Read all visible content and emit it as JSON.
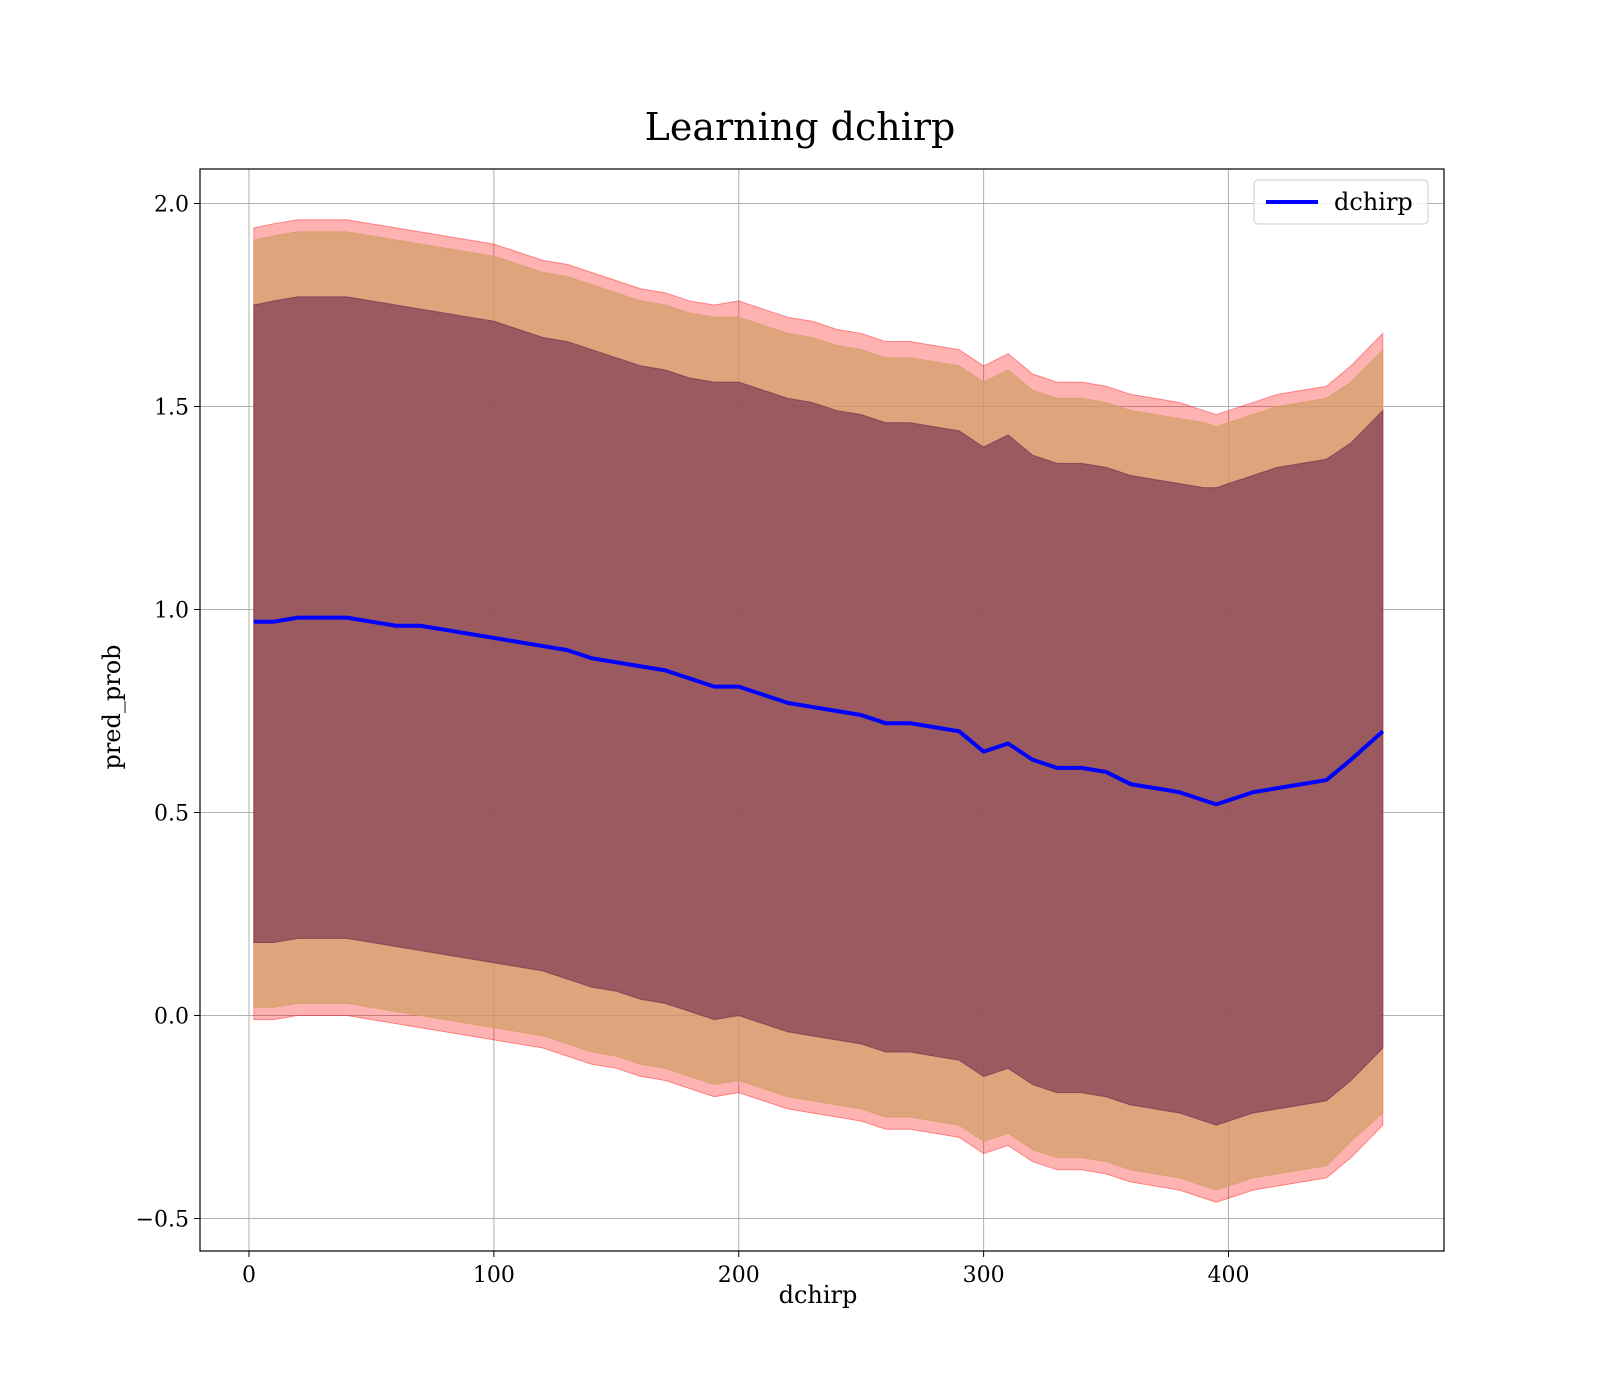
{
  "chart_data": {
    "type": "area",
    "title": "Learning dchirp",
    "xlabel": "dchirp",
    "ylabel": "pred_prob",
    "xlim": [
      -20,
      488
    ],
    "ylim": [
      -0.58,
      2.085
    ],
    "x_ticks": [
      0,
      100,
      200,
      300,
      400
    ],
    "x_tick_labels": [
      "0",
      "100",
      "200",
      "300",
      "400"
    ],
    "y_ticks": [
      -0.5,
      0.0,
      0.5,
      1.0,
      1.5,
      2.0
    ],
    "y_tick_labels": [
      "−0.5",
      "0.0",
      "0.5",
      "1.0",
      "1.5",
      "2.0"
    ],
    "grid": true,
    "legend_position": "top-right",
    "x": [
      2,
      10,
      20,
      30,
      40,
      50,
      60,
      70,
      80,
      90,
      100,
      110,
      120,
      130,
      140,
      150,
      160,
      170,
      180,
      190,
      200,
      210,
      220,
      230,
      240,
      250,
      260,
      270,
      280,
      290,
      300,
      310,
      320,
      330,
      340,
      350,
      360,
      370,
      380,
      390,
      395,
      400,
      410,
      420,
      430,
      440,
      450,
      463
    ],
    "series": [
      {
        "name": "dchirp",
        "color": "#0000ff",
        "values": [
          0.97,
          0.97,
          0.98,
          0.98,
          0.98,
          0.97,
          0.96,
          0.96,
          0.95,
          0.94,
          0.93,
          0.92,
          0.91,
          0.9,
          0.88,
          0.87,
          0.86,
          0.85,
          0.83,
          0.81,
          0.81,
          0.79,
          0.77,
          0.76,
          0.75,
          0.74,
          0.72,
          0.72,
          0.71,
          0.7,
          0.65,
          0.67,
          0.63,
          0.61,
          0.61,
          0.6,
          0.57,
          0.56,
          0.55,
          0.53,
          0.52,
          0.53,
          0.55,
          0.56,
          0.57,
          0.58,
          0.63,
          0.7
        ]
      }
    ],
    "bands": [
      {
        "color": "#ff0000",
        "opacity": 0.3,
        "upper": [
          1.94,
          1.95,
          1.96,
          1.96,
          1.96,
          1.95,
          1.94,
          1.93,
          1.92,
          1.91,
          1.9,
          1.88,
          1.86,
          1.85,
          1.83,
          1.81,
          1.79,
          1.78,
          1.76,
          1.75,
          1.76,
          1.74,
          1.72,
          1.71,
          1.69,
          1.68,
          1.66,
          1.66,
          1.65,
          1.64,
          1.6,
          1.63,
          1.58,
          1.56,
          1.56,
          1.55,
          1.53,
          1.52,
          1.51,
          1.49,
          1.48,
          1.49,
          1.51,
          1.53,
          1.54,
          1.55,
          1.6,
          1.68
        ],
        "lower": [
          -0.01,
          -0.01,
          0.0,
          0.0,
          0.0,
          -0.01,
          -0.02,
          -0.03,
          -0.04,
          -0.05,
          -0.06,
          -0.07,
          -0.08,
          -0.1,
          -0.12,
          -0.13,
          -0.15,
          -0.16,
          -0.18,
          -0.2,
          -0.19,
          -0.21,
          -0.23,
          -0.24,
          -0.25,
          -0.26,
          -0.28,
          -0.28,
          -0.29,
          -0.3,
          -0.34,
          -0.32,
          -0.36,
          -0.38,
          -0.38,
          -0.39,
          -0.41,
          -0.42,
          -0.43,
          -0.45,
          -0.46,
          -0.45,
          -0.43,
          -0.42,
          -0.41,
          -0.4,
          -0.35,
          -0.27
        ]
      },
      {
        "color": "#d3a06a",
        "opacity": 0.75,
        "upper": [
          1.91,
          1.92,
          1.93,
          1.93,
          1.93,
          1.92,
          1.91,
          1.9,
          1.89,
          1.88,
          1.87,
          1.85,
          1.83,
          1.82,
          1.8,
          1.78,
          1.76,
          1.75,
          1.73,
          1.72,
          1.72,
          1.7,
          1.68,
          1.67,
          1.65,
          1.64,
          1.62,
          1.62,
          1.61,
          1.6,
          1.56,
          1.59,
          1.54,
          1.52,
          1.52,
          1.51,
          1.49,
          1.48,
          1.47,
          1.46,
          1.45,
          1.46,
          1.48,
          1.5,
          1.51,
          1.52,
          1.56,
          1.64
        ],
        "lower": [
          0.02,
          0.02,
          0.03,
          0.03,
          0.03,
          0.02,
          0.01,
          0.0,
          -0.01,
          -0.02,
          -0.03,
          -0.04,
          -0.05,
          -0.07,
          -0.09,
          -0.1,
          -0.12,
          -0.13,
          -0.15,
          -0.17,
          -0.16,
          -0.18,
          -0.2,
          -0.21,
          -0.22,
          -0.23,
          -0.25,
          -0.25,
          -0.26,
          -0.27,
          -0.31,
          -0.29,
          -0.33,
          -0.35,
          -0.35,
          -0.36,
          -0.38,
          -0.39,
          -0.4,
          -0.42,
          -0.43,
          -0.42,
          -0.4,
          -0.39,
          -0.38,
          -0.37,
          -0.31,
          -0.24
        ]
      },
      {
        "color": "#7d3a52",
        "opacity": 0.7,
        "upper": [
          1.75,
          1.76,
          1.77,
          1.77,
          1.77,
          1.76,
          1.75,
          1.74,
          1.73,
          1.72,
          1.71,
          1.69,
          1.67,
          1.66,
          1.64,
          1.62,
          1.6,
          1.59,
          1.57,
          1.56,
          1.56,
          1.54,
          1.52,
          1.51,
          1.49,
          1.48,
          1.46,
          1.46,
          1.45,
          1.44,
          1.4,
          1.43,
          1.38,
          1.36,
          1.36,
          1.35,
          1.33,
          1.32,
          1.31,
          1.3,
          1.3,
          1.31,
          1.33,
          1.35,
          1.36,
          1.37,
          1.41,
          1.49
        ],
        "lower": [
          0.18,
          0.18,
          0.19,
          0.19,
          0.19,
          0.18,
          0.17,
          0.16,
          0.15,
          0.14,
          0.13,
          0.12,
          0.11,
          0.09,
          0.07,
          0.06,
          0.04,
          0.03,
          0.01,
          -0.01,
          0.0,
          -0.02,
          -0.04,
          -0.05,
          -0.06,
          -0.07,
          -0.09,
          -0.09,
          -0.1,
          -0.11,
          -0.15,
          -0.13,
          -0.17,
          -0.19,
          -0.19,
          -0.2,
          -0.22,
          -0.23,
          -0.24,
          -0.26,
          -0.27,
          -0.26,
          -0.24,
          -0.23,
          -0.22,
          -0.21,
          -0.16,
          -0.08
        ]
      }
    ]
  }
}
